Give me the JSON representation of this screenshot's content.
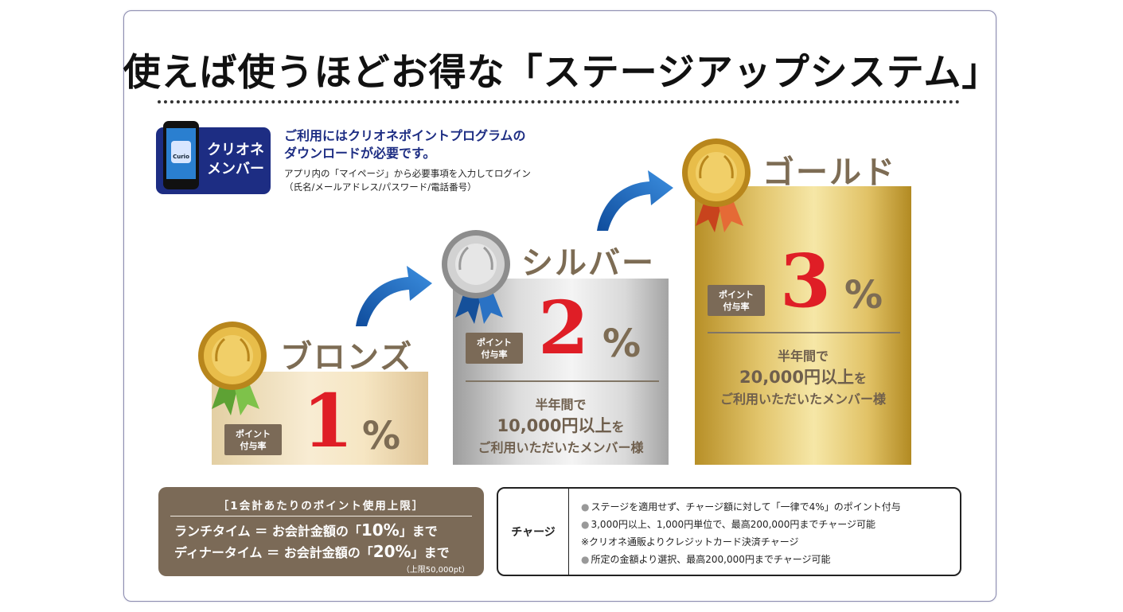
{
  "title": "使えば使うほどお得な「ステージアップシステム」",
  "app": {
    "icon_name": "phone-app-icon",
    "logo_text": "Curio",
    "label_line1": "クリオネ",
    "label_line2": "メンバー"
  },
  "info": {
    "main_line1": "ご利用にはクリオネポイントプログラムの",
    "main_line2": "ダウンロードが必要です。",
    "sub_line1": "アプリ内の「マイページ」から必要事項を入力してログイン",
    "sub_line2": "（氏名/メールアドレス/パスワード/電話番号）"
  },
  "tag": {
    "line1": "ポイント",
    "line2": "付与率"
  },
  "percent_sign": "%",
  "stages": {
    "bronze": {
      "name": "ブロンズ",
      "rate": "1",
      "ribbon_color": "#6db33f",
      "medal_color": "#d4a52c"
    },
    "silver": {
      "name": "シルバー",
      "rate": "2",
      "cond_line1": "半年間で",
      "cond_amount": "10,000円以上",
      "cond_suffix": "を",
      "cond_line3": "ご利用いただいたメンバー様",
      "ribbon_color": "#1b5fa8",
      "medal_color": "#b8b8b8"
    },
    "gold": {
      "name": "ゴールド",
      "rate": "3",
      "cond_line1": "半年間で",
      "cond_amount": "20,000円以上",
      "cond_suffix": "を",
      "cond_line3": "ご利用いただいたメンバー様",
      "ribbon_color": "#e15a2a",
      "medal_color": "#d4a52c"
    }
  },
  "limit": {
    "title": "［1会計あたりのポイント使用上限］",
    "lunch_prefix": "ランチタイム ＝ お会計金額の「",
    "lunch_value": "10%",
    "lunch_suffix": "」まで",
    "dinner_prefix": "ディナータイム ＝ お会計金額の「",
    "dinner_value": "20%",
    "dinner_suffix": "」まで",
    "cap": "（上限50,000pt）"
  },
  "charge": {
    "heading": "チャージ",
    "items": [
      "ステージを適用せず、チャージ額に対して「一律で4%」のポイント付与",
      "3,000円以上、1,000円単位で、最高200,000円までチャージ可能",
      "※クリオネ通販よりクレジットカード決済チャージ",
      "所定の金額より選択、最高200,000円までチャージ可能"
    ]
  },
  "colors": {
    "accent_red": "#df1e26",
    "brand_navy": "#1d2d83",
    "label_brown": "#7b6a57"
  }
}
